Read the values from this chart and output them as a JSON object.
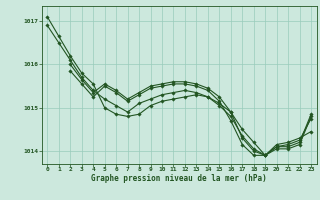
{
  "title": "Graphe pression niveau de la mer (hPa)",
  "bg_color": "#cce8dd",
  "grid_color": "#99ccbb",
  "line_color": "#225522",
  "marker_color": "#225522",
  "xlim": [
    -0.5,
    23.5
  ],
  "ylim": [
    1013.7,
    1017.35
  ],
  "yticks": [
    1014,
    1015,
    1016,
    1017
  ],
  "xticks": [
    0,
    1,
    2,
    3,
    4,
    5,
    6,
    7,
    8,
    9,
    10,
    11,
    12,
    13,
    14,
    15,
    16,
    17,
    18,
    19,
    20,
    21,
    22,
    23
  ],
  "lines": [
    {
      "x": [
        0,
        1,
        2,
        3,
        4,
        5,
        6,
        7,
        8,
        9,
        10,
        11,
        12,
        13,
        14,
        15,
        16,
        17,
        18,
        19,
        20,
        21,
        22,
        23
      ],
      "y": [
        1017.1,
        1016.65,
        1016.2,
        1015.8,
        1015.55,
        1015.0,
        1014.85,
        1014.8,
        1014.85,
        1015.05,
        1015.15,
        1015.2,
        1015.25,
        1015.3,
        1015.25,
        1015.1,
        1014.9,
        1014.5,
        1014.2,
        1013.9,
        1014.15,
        1014.2,
        1014.3,
        1014.45
      ]
    },
    {
      "x": [
        0,
        1,
        2,
        3,
        4,
        5,
        6,
        7,
        8,
        9,
        10,
        11,
        12,
        13,
        14,
        15,
        16,
        17,
        18,
        19,
        20,
        21,
        22,
        23
      ],
      "y": [
        1016.9,
        1016.5,
        1016.1,
        1015.7,
        1015.4,
        1015.2,
        1015.05,
        1014.9,
        1015.1,
        1015.2,
        1015.3,
        1015.35,
        1015.4,
        1015.35,
        1015.25,
        1015.05,
        1014.8,
        1014.35,
        1014.05,
        1013.9,
        1014.1,
        1014.15,
        1014.25,
        1014.75
      ]
    },
    {
      "x": [
        2,
        3,
        4,
        5,
        6,
        7,
        8,
        9,
        10,
        11,
        12,
        13,
        14,
        15,
        16,
        17,
        18,
        19,
        20,
        21,
        22,
        23
      ],
      "y": [
        1015.85,
        1015.55,
        1015.25,
        1015.5,
        1015.35,
        1015.15,
        1015.3,
        1015.45,
        1015.5,
        1015.55,
        1015.55,
        1015.5,
        1015.4,
        1015.15,
        1014.7,
        1014.15,
        1013.9,
        1013.9,
        1014.1,
        1014.1,
        1014.2,
        1014.85
      ]
    },
    {
      "x": [
        2,
        3,
        4,
        5,
        6,
        7,
        8,
        9,
        10,
        11,
        12,
        13,
        14,
        15,
        16,
        17,
        18,
        19,
        20,
        21,
        22,
        23
      ],
      "y": [
        1016.0,
        1015.65,
        1015.35,
        1015.55,
        1015.4,
        1015.2,
        1015.35,
        1015.5,
        1015.55,
        1015.6,
        1015.6,
        1015.55,
        1015.45,
        1015.25,
        1014.9,
        1014.3,
        1014.0,
        1013.9,
        1014.05,
        1014.05,
        1014.15,
        1014.8
      ]
    }
  ],
  "figsize": [
    3.2,
    2.0
  ],
  "dpi": 100,
  "title_fontsize": 5.5,
  "tick_fontsize": 4.5,
  "linewidth": 0.8,
  "markersize": 1.8
}
